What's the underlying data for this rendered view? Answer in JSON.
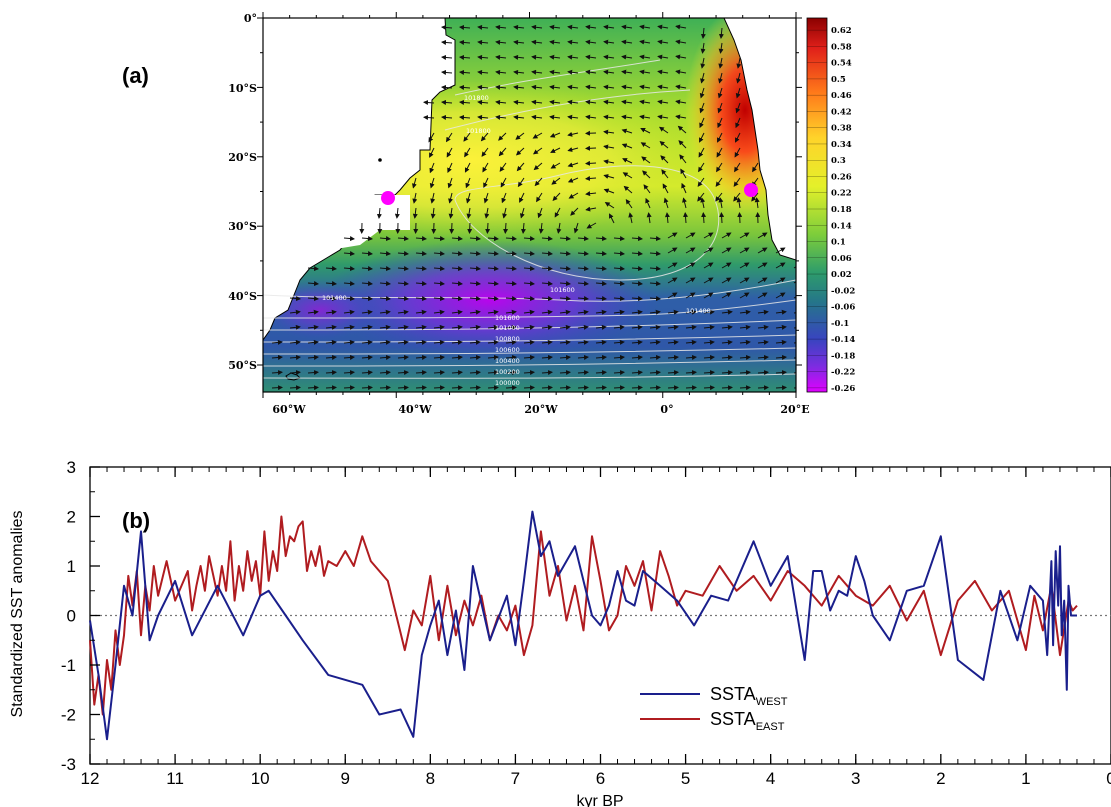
{
  "panel_a": {
    "label": "(a)",
    "lat_ticks": [
      "0°",
      "10°S",
      "20°S",
      "30°S",
      "40°S",
      "50°S"
    ],
    "lon_ticks": [
      "60°W",
      "40°W",
      "20°W",
      "0°",
      "20°E"
    ],
    "colorbar_ticks": [
      "0.62",
      "0.58",
      "0.54",
      "0.5",
      "0.46",
      "0.42",
      "0.38",
      "0.34",
      "0.3",
      "0.26",
      "0.22",
      "0.18",
      "0.14",
      "0.1",
      "0.06",
      "0.02",
      "-0.02",
      "-0.06",
      "-0.1",
      "-0.14",
      "-0.18",
      "-0.22",
      "-0.26"
    ],
    "contour_labels": [
      "101800",
      "101800",
      "101600",
      "101400",
      "101400",
      "101000",
      "100800",
      "100600",
      "100400",
      "100200",
      "100000",
      "101600"
    ],
    "colors": {
      "max": "#b00000",
      "high": "#ff3b14",
      "mid_high": "#ffee33",
      "mid": "#c8e62a",
      "zero": "#2ea56c",
      "low": "#3b44c8",
      "min": "#d000ff",
      "marker": "#ff00ff"
    }
  },
  "chart_data": {
    "type": "line",
    "label": "(b)",
    "title": "",
    "xlabel": "kyr BP",
    "ylabel": "Standardized SST anomalies",
    "xlim": [
      12,
      0
    ],
    "ylim": [
      -3,
      3
    ],
    "x_ticks": [
      "12",
      "11",
      "10",
      "9",
      "8",
      "7",
      "6",
      "5",
      "4",
      "3",
      "2",
      "1",
      "0"
    ],
    "y_ticks": [
      "3",
      "2",
      "1",
      "0",
      "-1",
      "-2",
      "-3"
    ],
    "zero_line": "dotted",
    "legend_position": "lower-right",
    "series": [
      {
        "name": "SSTA_WEST",
        "legend_main": "SSTA",
        "legend_sub": "WEST",
        "color": "#1a1f8c",
        "x": [
          12.0,
          11.9,
          11.8,
          11.7,
          11.6,
          11.5,
          11.4,
          11.3,
          11.2,
          11.0,
          10.8,
          10.5,
          10.2,
          10.0,
          9.9,
          9.7,
          9.5,
          9.2,
          8.8,
          8.6,
          8.35,
          8.2,
          8.1,
          8.0,
          7.9,
          7.8,
          7.7,
          7.6,
          7.5,
          7.3,
          7.1,
          7.0,
          6.9,
          6.8,
          6.7,
          6.6,
          6.5,
          6.3,
          6.1,
          6.0,
          5.9,
          5.8,
          5.7,
          5.6,
          5.5,
          5.3,
          5.1,
          4.9,
          4.7,
          4.5,
          4.2,
          4.0,
          3.8,
          3.6,
          3.5,
          3.4,
          3.3,
          3.2,
          3.1,
          3.0,
          2.9,
          2.8,
          2.6,
          2.4,
          2.2,
          2.0,
          1.8,
          1.5,
          1.3,
          1.1,
          0.95,
          0.8,
          0.75,
          0.7,
          0.68,
          0.65,
          0.62,
          0.6,
          0.58,
          0.55,
          0.52,
          0.5,
          0.47,
          0.45,
          0.42,
          0.4
        ],
        "values": [
          -0.1,
          -1.2,
          -2.5,
          -1.0,
          0.6,
          0.0,
          1.7,
          -0.5,
          0.0,
          0.7,
          -0.4,
          0.6,
          -0.4,
          0.4,
          0.5,
          0.0,
          -0.5,
          -1.2,
          -1.4,
          -2.0,
          -1.9,
          -2.45,
          -0.8,
          -0.2,
          0.3,
          -0.8,
          0.1,
          -1.1,
          1.0,
          -0.5,
          0.4,
          -0.6,
          0.7,
          2.1,
          1.2,
          1.5,
          0.8,
          1.4,
          0.0,
          -0.2,
          0.2,
          0.9,
          0.3,
          0.2,
          0.9,
          0.6,
          0.3,
          -0.2,
          0.4,
          0.3,
          1.5,
          0.6,
          1.2,
          -0.9,
          0.9,
          0.9,
          0.1,
          0.5,
          0.4,
          1.2,
          0.7,
          0.0,
          -0.5,
          0.5,
          0.6,
          1.6,
          -0.9,
          -1.3,
          0.5,
          -0.5,
          0.6,
          0.3,
          -0.8,
          1.1,
          -0.6,
          1.3,
          0.2,
          1.4,
          -0.4,
          0.3,
          -1.5,
          0.6,
          0.0,
          0.0,
          0.0,
          0.0
        ]
      },
      {
        "name": "SSTA_EAST",
        "legend_main": "SSTA",
        "legend_sub": "EAST",
        "color": "#b01c20",
        "x": [
          12.0,
          11.95,
          11.9,
          11.85,
          11.8,
          11.75,
          11.7,
          11.65,
          11.6,
          11.55,
          11.5,
          11.45,
          11.4,
          11.35,
          11.3,
          11.25,
          11.2,
          11.1,
          11.0,
          10.9,
          10.85,
          10.8,
          10.75,
          10.7,
          10.65,
          10.6,
          10.55,
          10.5,
          10.45,
          10.4,
          10.35,
          10.3,
          10.25,
          10.2,
          10.15,
          10.1,
          10.05,
          10.0,
          9.95,
          9.9,
          9.85,
          9.8,
          9.75,
          9.7,
          9.65,
          9.6,
          9.55,
          9.5,
          9.45,
          9.4,
          9.35,
          9.3,
          9.25,
          9.2,
          9.1,
          9.0,
          8.9,
          8.8,
          8.7,
          8.6,
          8.5,
          8.4,
          8.3,
          8.2,
          8.1,
          8.0,
          7.9,
          7.8,
          7.7,
          7.6,
          7.5,
          7.4,
          7.3,
          7.2,
          7.1,
          7.0,
          6.9,
          6.8,
          6.7,
          6.6,
          6.5,
          6.4,
          6.3,
          6.2,
          6.1,
          6.0,
          5.9,
          5.8,
          5.7,
          5.6,
          5.5,
          5.4,
          5.3,
          5.2,
          5.1,
          5.0,
          4.8,
          4.6,
          4.4,
          4.2,
          4.0,
          3.8,
          3.6,
          3.4,
          3.2,
          3.0,
          2.8,
          2.6,
          2.4,
          2.2,
          2.0,
          1.8,
          1.6,
          1.4,
          1.2,
          1.0,
          0.9,
          0.8,
          0.7,
          0.6,
          0.5,
          0.45,
          0.4
        ],
        "values": [
          -0.5,
          -1.8,
          -1.2,
          -2.0,
          -0.9,
          -1.5,
          -0.3,
          -1.0,
          -0.4,
          0.8,
          0.2,
          0.9,
          -0.4,
          0.6,
          0.1,
          1.0,
          0.4,
          1.1,
          0.3,
          0.7,
          0.9,
          0.1,
          0.6,
          1.0,
          0.5,
          1.2,
          0.8,
          0.4,
          1.0,
          0.5,
          1.5,
          0.3,
          1.0,
          0.5,
          1.3,
          0.7,
          1.1,
          0.4,
          1.7,
          0.7,
          1.3,
          0.9,
          2.0,
          1.2,
          1.6,
          1.5,
          1.8,
          1.9,
          0.9,
          1.3,
          1.0,
          1.4,
          0.8,
          1.1,
          1.0,
          1.3,
          1.0,
          1.6,
          1.1,
          0.9,
          0.7,
          0.0,
          -0.7,
          0.1,
          -0.2,
          0.8,
          -0.5,
          0.6,
          -0.4,
          0.3,
          -0.2,
          0.4,
          -0.5,
          0.0,
          -0.3,
          0.2,
          -0.8,
          -0.2,
          1.7,
          0.4,
          1.0,
          -0.1,
          0.6,
          -0.3,
          1.6,
          0.7,
          -0.3,
          0.0,
          1.0,
          0.6,
          1.1,
          0.1,
          1.3,
          0.8,
          0.2,
          0.5,
          0.4,
          1.0,
          0.5,
          0.8,
          0.3,
          0.9,
          0.6,
          0.2,
          0.8,
          0.4,
          0.2,
          0.6,
          -0.1,
          0.5,
          -0.8,
          0.3,
          0.7,
          0.1,
          0.5,
          -0.7,
          0.4,
          -0.3,
          0.6,
          -0.8,
          0.3,
          0.1,
          0.2
        ]
      }
    ]
  }
}
